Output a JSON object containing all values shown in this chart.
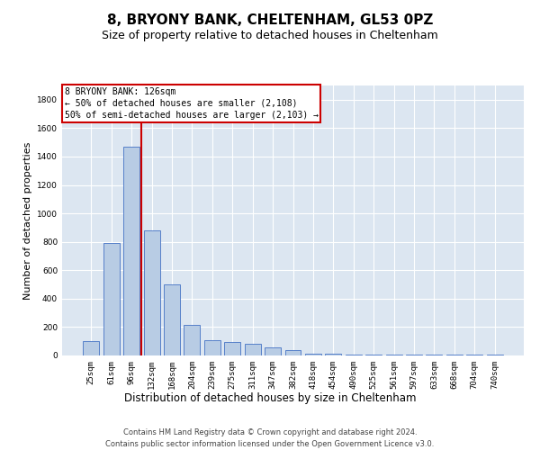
{
  "title": "8, BRYONY BANK, CHELTENHAM, GL53 0PZ",
  "subtitle": "Size of property relative to detached houses in Cheltenham",
  "xlabel": "Distribution of detached houses by size in Cheltenham",
  "ylabel": "Number of detached properties",
  "footer_line1": "Contains HM Land Registry data © Crown copyright and database right 2024.",
  "footer_line2": "Contains public sector information licensed under the Open Government Licence v3.0.",
  "categories": [
    "25sqm",
    "61sqm",
    "96sqm",
    "132sqm",
    "168sqm",
    "204sqm",
    "239sqm",
    "275sqm",
    "311sqm",
    "347sqm",
    "382sqm",
    "418sqm",
    "454sqm",
    "490sqm",
    "525sqm",
    "561sqm",
    "597sqm",
    "633sqm",
    "668sqm",
    "704sqm",
    "740sqm"
  ],
  "values": [
    100,
    790,
    1470,
    880,
    500,
    215,
    105,
    95,
    85,
    60,
    40,
    10,
    10,
    5,
    5,
    5,
    5,
    5,
    5,
    5,
    5
  ],
  "bar_color": "#b8cce4",
  "bar_edge_color": "#4472c4",
  "vline_color": "#cc0000",
  "vline_position": 2.5,
  "annotation_line1": "8 BRYONY BANK: 126sqm",
  "annotation_line2": "← 50% of detached houses are smaller (2,108)",
  "annotation_line3": "50% of semi-detached houses are larger (2,103) →",
  "annotation_box_facecolor": "#ffffff",
  "annotation_box_edgecolor": "#cc0000",
  "ylim": [
    0,
    1900
  ],
  "yticks": [
    0,
    200,
    400,
    600,
    800,
    1000,
    1200,
    1400,
    1600,
    1800
  ],
  "grid_color": "#ffffff",
  "plot_bg_color": "#dce6f1",
  "title_fontsize": 11,
  "subtitle_fontsize": 9,
  "ylabel_fontsize": 8,
  "xlabel_fontsize": 8.5,
  "tick_fontsize": 6.5,
  "annot_fontsize": 7,
  "footer_fontsize": 6
}
